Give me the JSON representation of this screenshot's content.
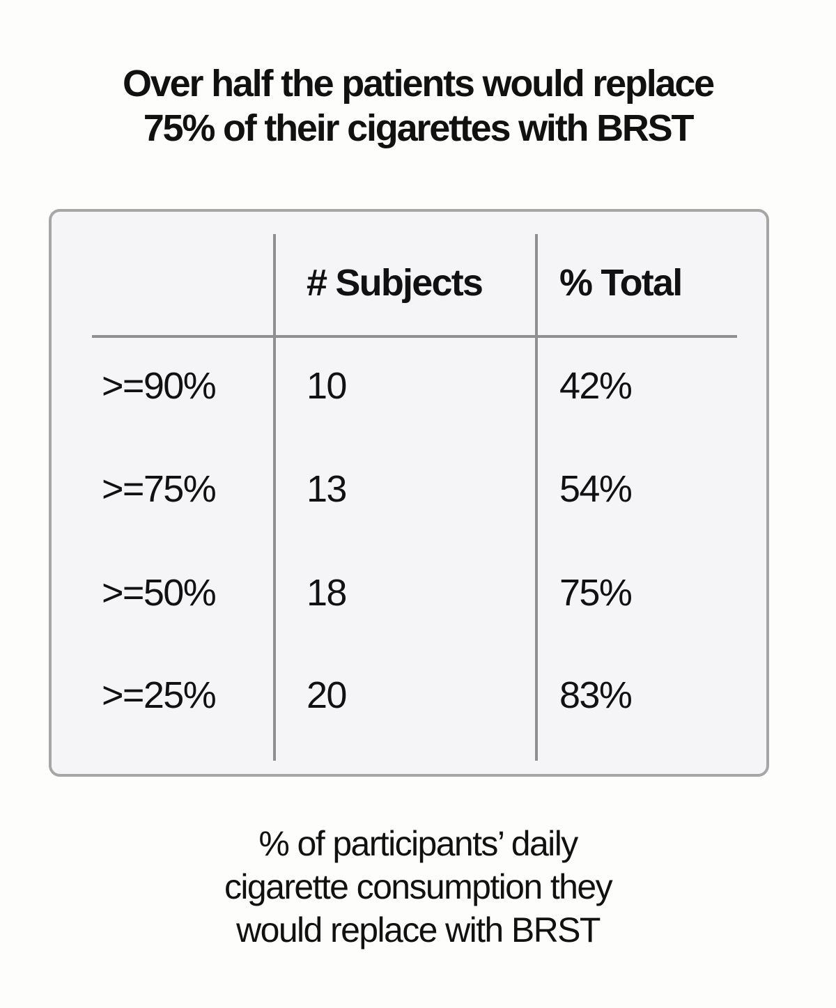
{
  "title": {
    "line1": "Over half the patients would replace",
    "line2": "75% of their cigarettes with BRST"
  },
  "chart_data": {
    "type": "table",
    "columns": [
      "",
      "# Subjects",
      "% Total"
    ],
    "rows": [
      {
        "label": ">=90%",
        "subjects": "10",
        "total": "42%"
      },
      {
        "label": ">=75%",
        "subjects": "13",
        "total": "54%"
      },
      {
        "label": ">=50%",
        "subjects": "18",
        "total": "75%"
      },
      {
        "label": ">=25%",
        "subjects": "20",
        "total": "83%"
      }
    ],
    "caption": {
      "line1": "% of participants’ daily",
      "line2": "cigarette consumption they",
      "line3": "would replace with BRST"
    }
  }
}
